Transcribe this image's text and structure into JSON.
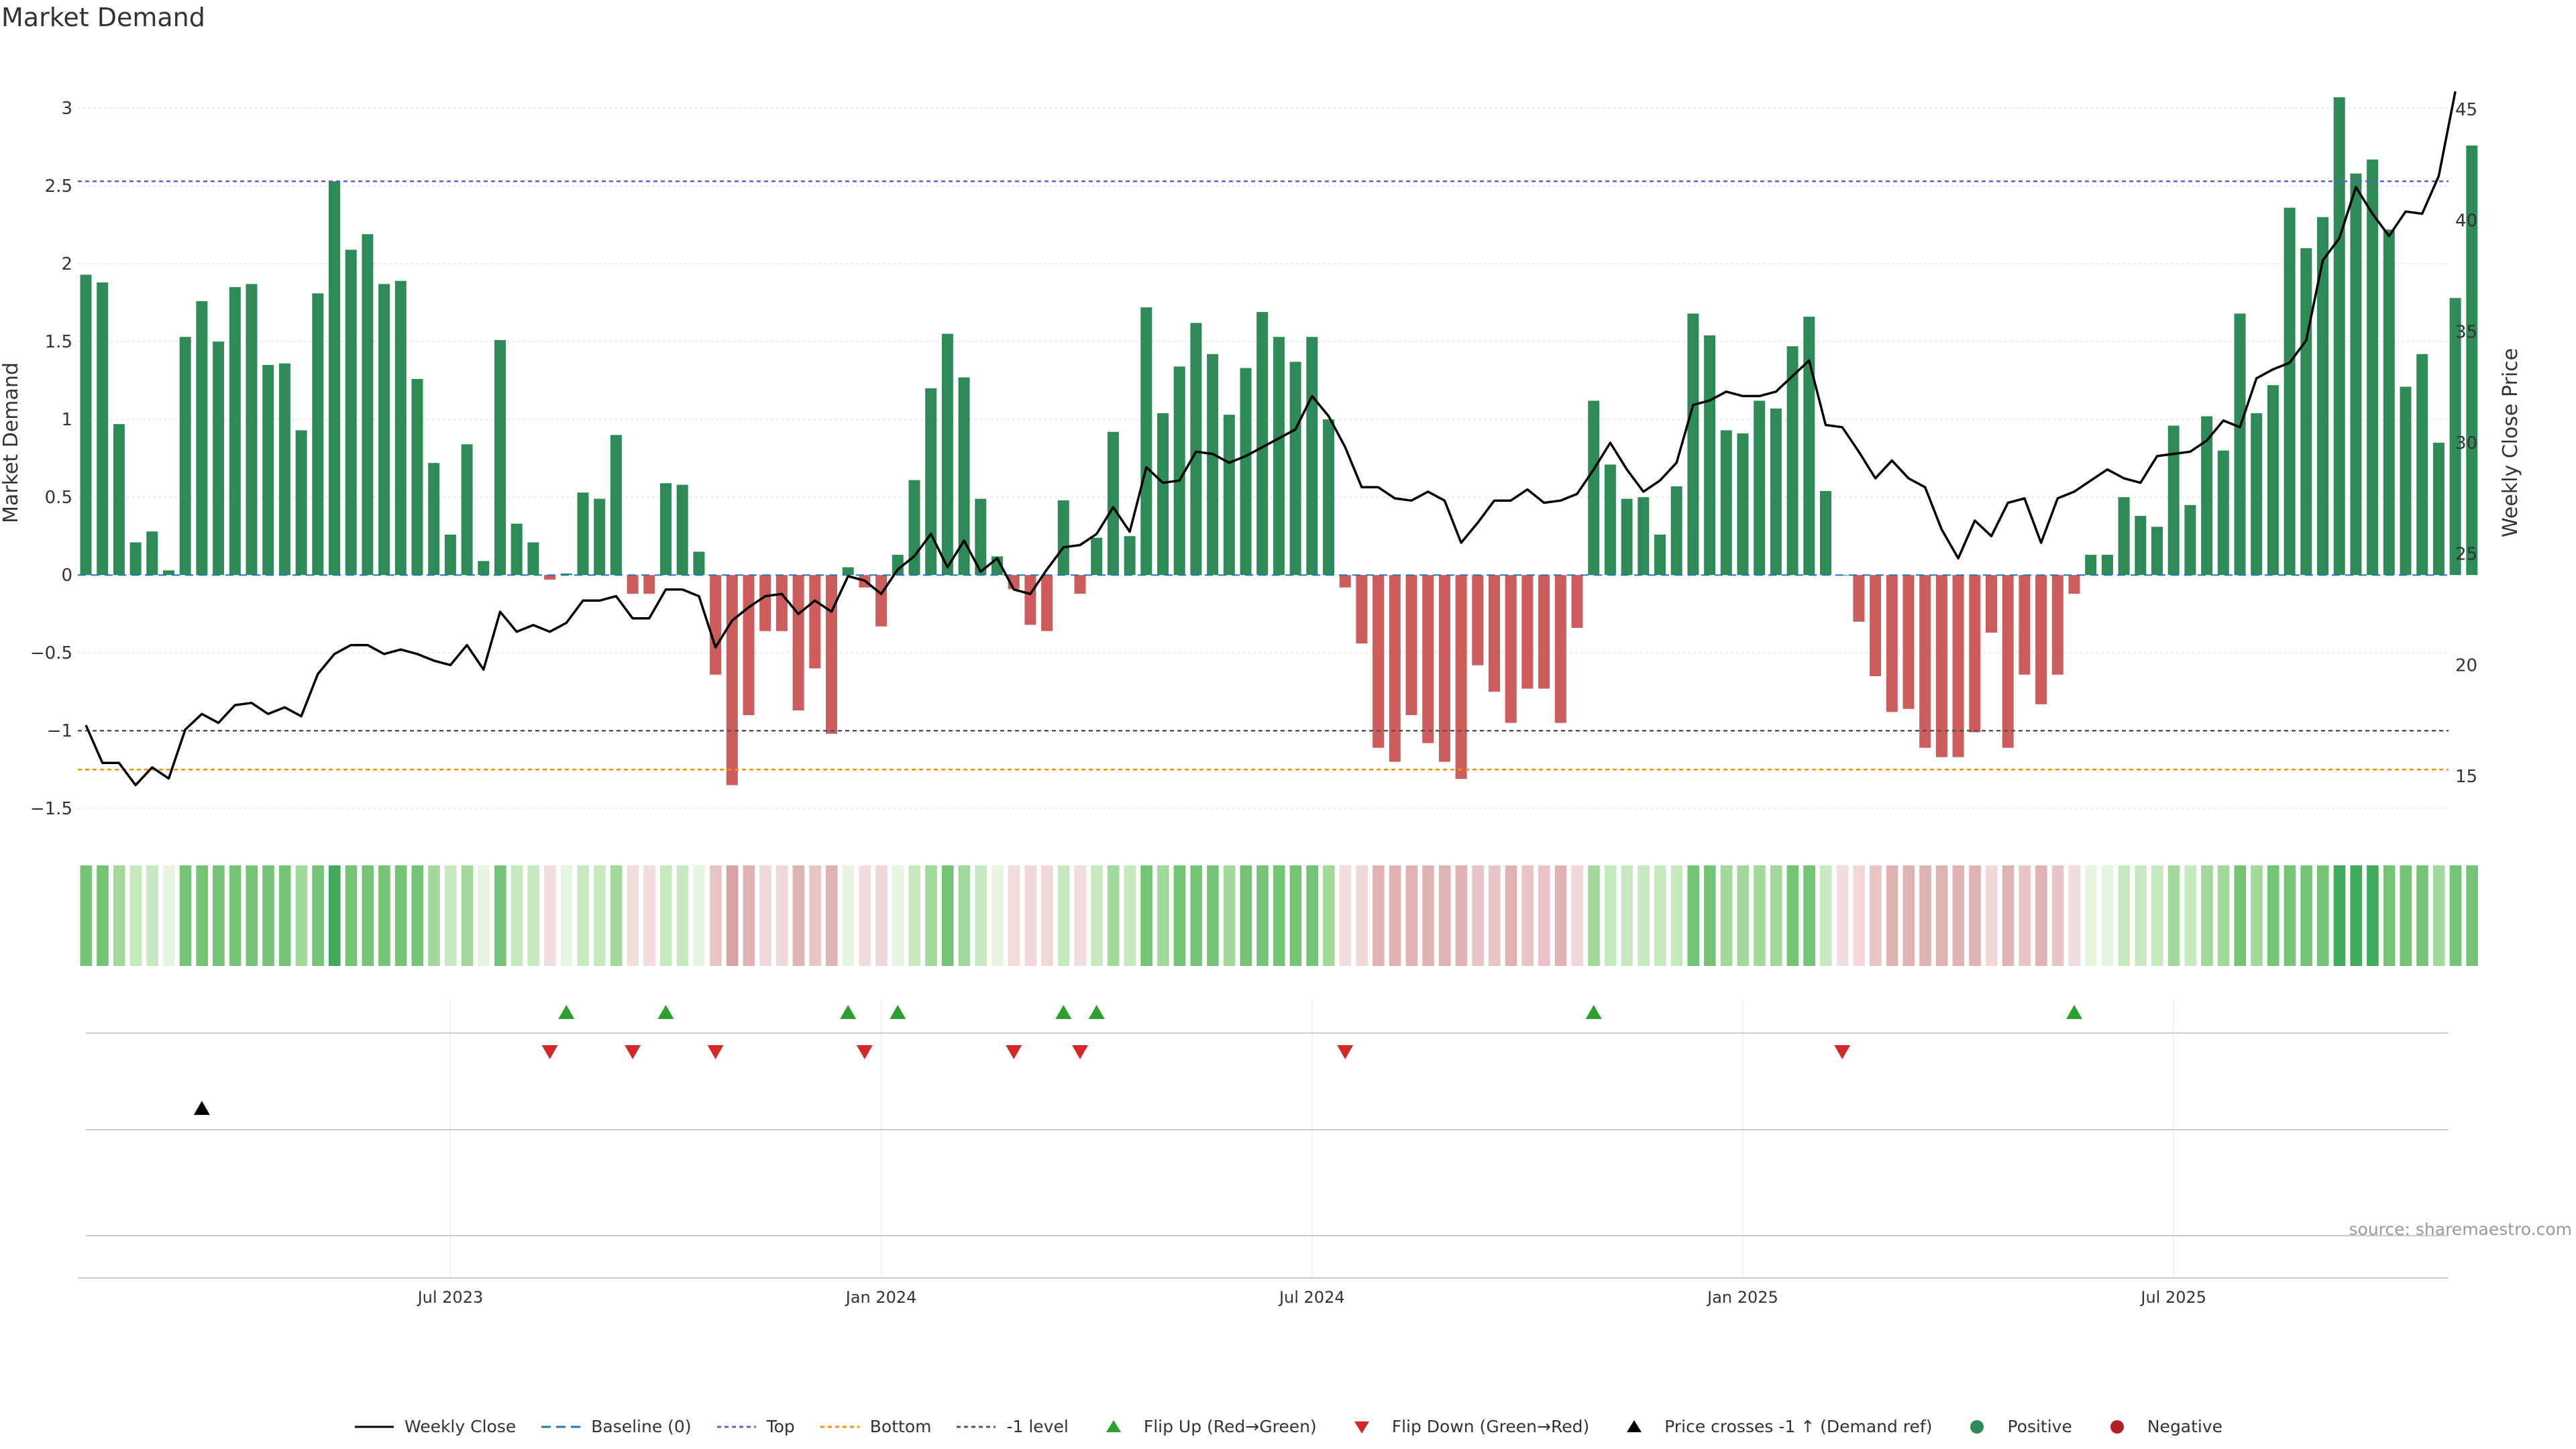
{
  "title": "Market Demand",
  "source": "source: sharemaestro.com",
  "colors": {
    "positive": "#2e8b57",
    "negative": "#cd5c5c",
    "price": "#000000",
    "top": "#6a5acd",
    "bottom": "#ff8c00",
    "minus1": "#555555",
    "baseline": "#1f77b4",
    "flip_up": "#2ca02c",
    "flip_down": "#d62728"
  },
  "legend": [
    {
      "key": "close",
      "label": "Weekly Close"
    },
    {
      "key": "baseline",
      "label": "Baseline (0)"
    },
    {
      "key": "top",
      "label": "Top"
    },
    {
      "key": "bottom",
      "label": "Bottom"
    },
    {
      "key": "minus1",
      "label": "-1 level"
    },
    {
      "key": "flipup",
      "label": "Flip Up (Red→Green)"
    },
    {
      "key": "flipdown",
      "label": "Flip Down (Green→Red)"
    },
    {
      "key": "cross",
      "label": "Price crosses -1 ↑ (Demand ref)"
    },
    {
      "key": "pos",
      "label": "Positive"
    },
    {
      "key": "neg",
      "label": "Negative"
    }
  ],
  "chart_data": {
    "type": "bar",
    "ylabel": "Market Demand",
    "y2label": "Weekly Close Price",
    "ylim": [
      -1.65,
      3.35
    ],
    "y2lim": [
      12.5,
      47.5
    ],
    "yticks": [
      3,
      2.5,
      2,
      1.5,
      1,
      0.5,
      0,
      -0.5,
      -1,
      -1.5
    ],
    "ytick_labels": [
      "3",
      "2.5",
      "2",
      "1.5",
      "1",
      "0.5",
      "0",
      "−0.5",
      "−1",
      "−1.5"
    ],
    "y2ticks": [
      45,
      40,
      35,
      30,
      25,
      20,
      15
    ],
    "x_tick_labels": [
      {
        "label": "Jul 2023",
        "index": 22
      },
      {
        "label": "Jan 2024",
        "index": 48
      },
      {
        "label": "Jul 2024",
        "index": 74
      },
      {
        "label": "Jan 2025",
        "index": 100
      },
      {
        "label": "Jul 2025",
        "index": 126
      }
    ],
    "levels": {
      "top": 2.53,
      "bottom": -1.25,
      "minus1": -1.0,
      "baseline": 0
    },
    "demand": [
      1.93,
      1.88,
      0.97,
      0.21,
      0.28,
      0.03,
      1.53,
      1.76,
      1.5,
      1.85,
      1.87,
      1.35,
      1.36,
      0.93,
      1.81,
      2.53,
      2.09,
      2.19,
      1.87,
      1.89,
      1.26,
      0.72,
      0.26,
      0.84,
      0.09,
      1.51,
      0.33,
      0.21,
      -0.03,
      0.01,
      0.53,
      0.49,
      0.9,
      -0.12,
      -0.12,
      0.59,
      0.58,
      0.15,
      -0.64,
      -1.35,
      -0.9,
      -0.36,
      -0.36,
      -0.87,
      -0.6,
      -1.02,
      0.05,
      -0.08,
      -0.33,
      0.13,
      0.61,
      1.2,
      1.55,
      1.27,
      0.49,
      0.12,
      -0.09,
      -0.32,
      -0.36,
      0.48,
      -0.12,
      0.24,
      0.92,
      0.25,
      1.72,
      1.04,
      1.34,
      1.62,
      1.42,
      1.03,
      1.33,
      1.69,
      1.53,
      1.37,
      1.53,
      1.0,
      -0.08,
      -0.44,
      -1.11,
      -1.2,
      -0.9,
      -1.08,
      -1.2,
      -1.31,
      -0.58,
      -0.75,
      -0.95,
      -0.73,
      -0.73,
      -0.95,
      -0.34,
      1.12,
      0.71,
      0.49,
      0.5,
      0.26,
      0.57,
      1.68,
      1.54,
      0.93,
      0.91,
      1.12,
      1.07,
      1.47,
      1.66,
      0.54,
      0.0,
      -0.3,
      -0.65,
      -0.88,
      -0.86,
      -1.11,
      -1.17,
      -1.17,
      -1.01,
      -0.37,
      -1.11,
      -0.64,
      -0.83,
      -0.64,
      -0.12,
      0.13,
      0.13,
      0.5,
      0.38,
      0.31,
      0.96,
      0.45,
      1.02,
      0.8,
      1.68,
      1.04,
      1.22,
      2.36,
      2.1,
      2.3,
      3.07,
      2.58,
      2.67,
      2.22,
      1.21,
      1.42,
      0.85,
      1.78,
      2.76
    ],
    "close": [
      17.3,
      15.6,
      15.6,
      14.6,
      15.4,
      14.9,
      17.1,
      17.8,
      17.4,
      18.2,
      18.3,
      17.8,
      18.1,
      17.7,
      19.6,
      20.5,
      20.9,
      20.9,
      20.5,
      20.7,
      20.5,
      20.2,
      20.0,
      20.9,
      19.8,
      22.4,
      21.5,
      21.8,
      21.5,
      21.9,
      22.9,
      22.9,
      23.1,
      22.1,
      22.1,
      23.4,
      23.4,
      23.1,
      20.8,
      22.0,
      22.6,
      23.1,
      23.2,
      22.3,
      22.9,
      22.4,
      24.0,
      23.8,
      23.2,
      24.3,
      24.9,
      25.9,
      24.4,
      25.6,
      24.2,
      24.8,
      23.4,
      23.2,
      24.3,
      25.3,
      25.4,
      25.9,
      27.1,
      26.0,
      28.9,
      28.2,
      28.3,
      29.6,
      29.5,
      29.1,
      29.4,
      29.8,
      30.2,
      30.6,
      32.1,
      31.2,
      29.8,
      28.0,
      28.0,
      27.5,
      27.4,
      27.8,
      27.4,
      25.5,
      26.4,
      27.4,
      27.4,
      27.9,
      27.3,
      27.4,
      27.7,
      28.8,
      30.0,
      28.8,
      27.8,
      28.3,
      29.1,
      31.7,
      31.9,
      32.3,
      32.1,
      32.1,
      32.3,
      33.0,
      33.7,
      30.8,
      30.7,
      29.6,
      28.4,
      29.2,
      28.4,
      28.0,
      26.1,
      24.8,
      26.5,
      25.8,
      27.3,
      27.5,
      25.5,
      27.5,
      27.8,
      28.3,
      28.8,
      28.4,
      28.2,
      29.4,
      29.5,
      29.6,
      30.1,
      31.0,
      30.7,
      32.9,
      33.3,
      33.6,
      34.6,
      38.2,
      39.2,
      41.5,
      40.3,
      39.3,
      40.4,
      40.3,
      42.0,
      45.8
    ],
    "strip_colors": [
      "#74c476",
      "#74c476",
      "#a1d99b",
      "#c7e9c0",
      "#c7e9c0",
      "#e5f5e0",
      "#74c476",
      "#74c476",
      "#74c476",
      "#74c476",
      "#74c476",
      "#74c476",
      "#74c476",
      "#a1d99b",
      "#74c476",
      "#41ab5d",
      "#74c476",
      "#74c476",
      "#74c476",
      "#74c476",
      "#74c476",
      "#a1d99b",
      "#c7e9c0",
      "#a1d99b",
      "#e5f5e0",
      "#74c476",
      "#c7e9c0",
      "#c7e9c0",
      "#f2dcdc",
      "#e5f5e0",
      "#c7e9c0",
      "#c7e9c0",
      "#a1d99b",
      "#f2dcdc",
      "#f2dcdc",
      "#c7e9c0",
      "#c7e9c0",
      "#e5f5e0",
      "#e8c4c4",
      "#d9a3a3",
      "#e0b3b3",
      "#f0d8d8",
      "#f0d8d8",
      "#e0b3b3",
      "#e8c4c4",
      "#e0b3b3",
      "#e5f5e0",
      "#f2dcdc",
      "#f0d8d8",
      "#e5f5e0",
      "#c7e9c0",
      "#a1d99b",
      "#74c476",
      "#a1d99b",
      "#c7e9c0",
      "#e5f5e0",
      "#f2dcdc",
      "#f0d8d8",
      "#f0d8d8",
      "#c7e9c0",
      "#f2dcdc",
      "#c7e9c0",
      "#a1d99b",
      "#c7e9c0",
      "#74c476",
      "#a1d99b",
      "#74c476",
      "#74c476",
      "#74c476",
      "#a1d99b",
      "#74c476",
      "#74c476",
      "#74c476",
      "#74c476",
      "#74c476",
      "#a1d99b",
      "#f2dcdc",
      "#f0d8d8",
      "#e0b3b3",
      "#e0b3b3",
      "#e0b3b3",
      "#e0b3b3",
      "#e0b3b3",
      "#e0b3b3",
      "#e8c4c4",
      "#e8c4c4",
      "#e0b3b3",
      "#e8c4c4",
      "#e8c4c4",
      "#e0b3b3",
      "#f0d8d8",
      "#a1d99b",
      "#c7e9c0",
      "#c7e9c0",
      "#c7e9c0",
      "#c7e9c0",
      "#c7e9c0",
      "#74c476",
      "#74c476",
      "#a1d99b",
      "#a1d99b",
      "#a1d99b",
      "#a1d99b",
      "#74c476",
      "#74c476",
      "#c7e9c0",
      "#f2dcdc",
      "#f0d8d8",
      "#e8c4c4",
      "#e0b3b3",
      "#e0b3b3",
      "#e0b3b3",
      "#e0b3b3",
      "#e0b3b3",
      "#e0b3b3",
      "#f0d8d8",
      "#e0b3b3",
      "#e8c4c4",
      "#e0b3b3",
      "#e8c4c4",
      "#f2dcdc",
      "#e5f5e0",
      "#e5f5e0",
      "#c7e9c0",
      "#c7e9c0",
      "#c7e9c0",
      "#a1d99b",
      "#c7e9c0",
      "#a1d99b",
      "#a1d99b",
      "#74c476",
      "#a1d99b",
      "#74c476",
      "#74c476",
      "#74c476",
      "#74c476",
      "#41ab5d",
      "#41ab5d",
      "#41ab5d",
      "#74c476",
      "#74c476",
      "#74c476",
      "#a1d99b",
      "#74c476",
      "#74c476"
    ],
    "flip_up": [
      29,
      35,
      46,
      49,
      59,
      61,
      91,
      120
    ],
    "flip_down": [
      28,
      33,
      38,
      47,
      56,
      60,
      76,
      106
    ],
    "price_cross": [
      7
    ]
  }
}
